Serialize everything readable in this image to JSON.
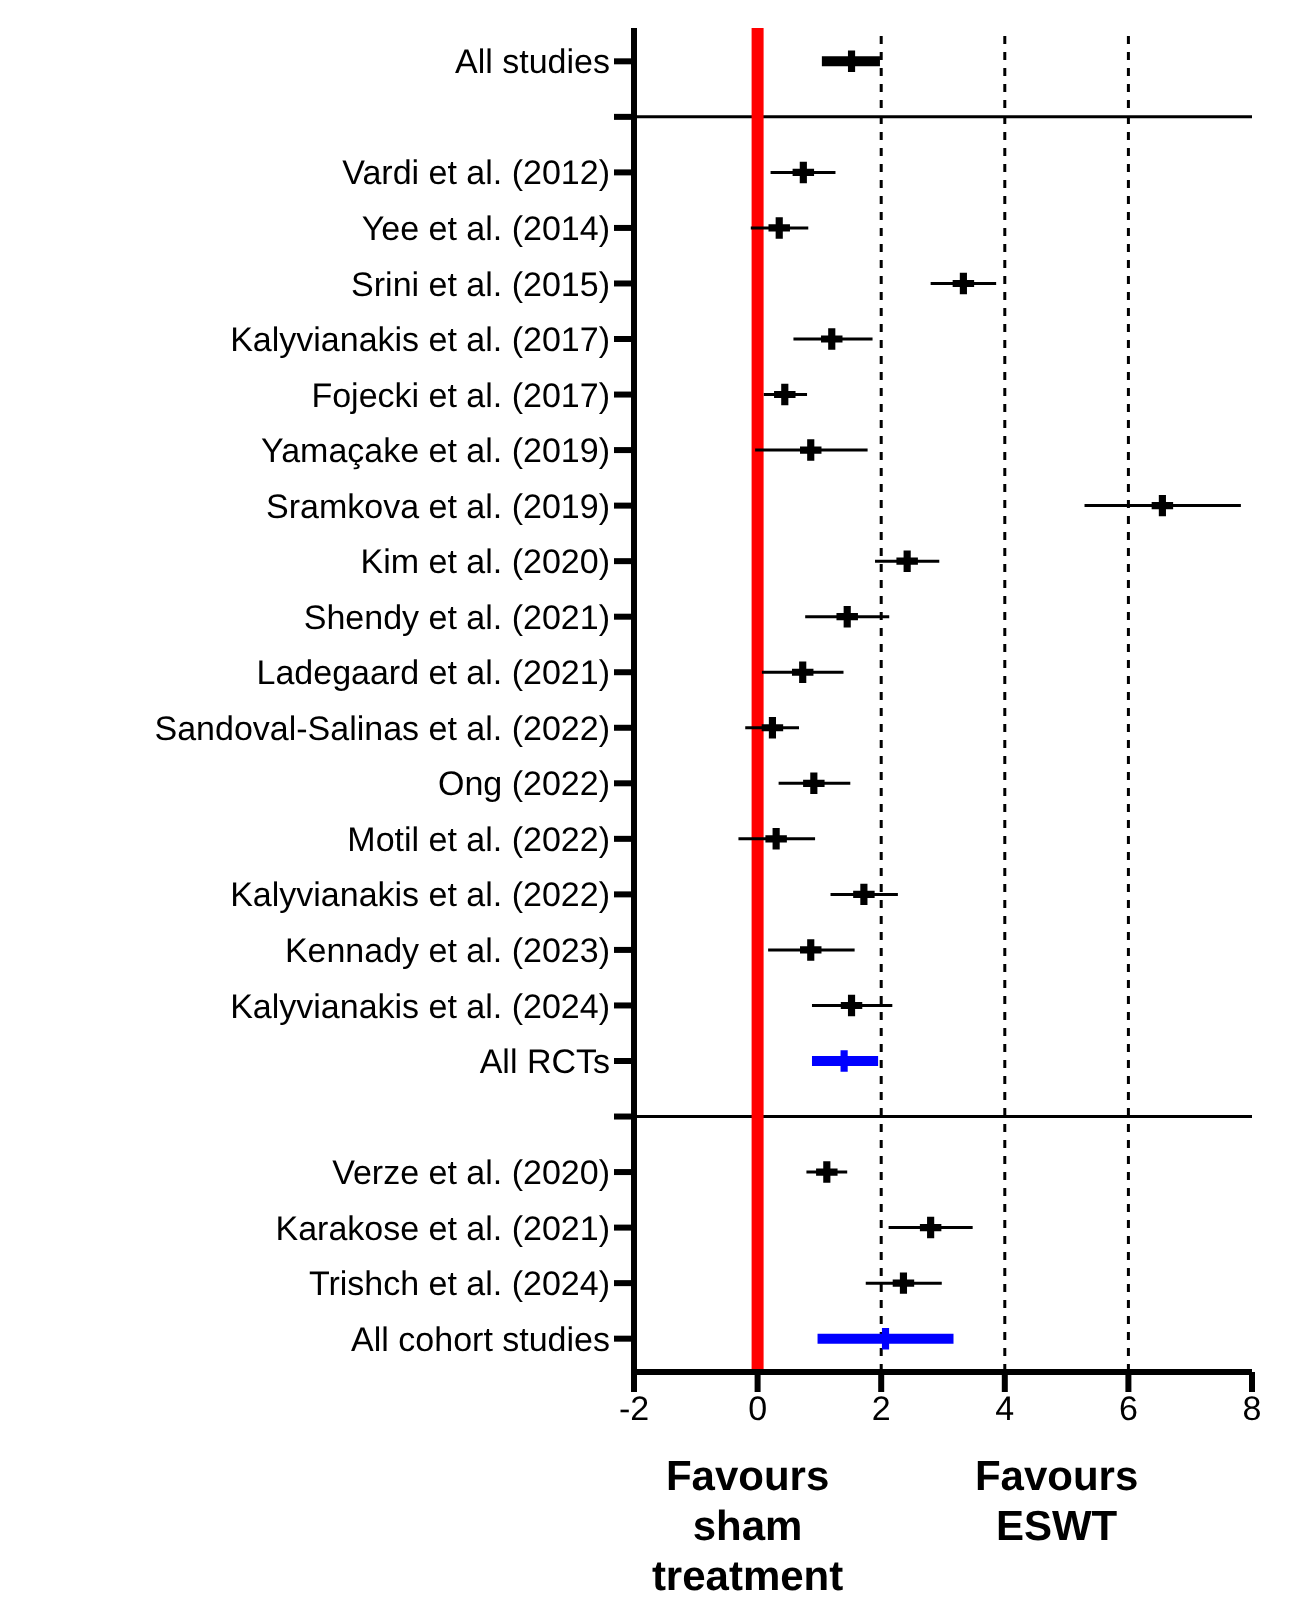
{
  "chart_data": {
    "type": "scatter",
    "orientation": "horizontal",
    "marker": "cross",
    "categories": [
      "All studies",
      null,
      "Vardi et al. (2012)",
      "Yee et al. (2014)",
      "Srini et al. (2015)",
      "Kalyvianakis et al. (2017)",
      "Fojecki et al. (2017)",
      "Yamaçake et al. (2019)",
      "Sramkova et al. (2019)",
      "Kim et al. (2020)",
      "Shendy et al. (2021)",
      "Ladegaard et al. (2021)",
      "Sandoval-Salinas et al. (2022)",
      "Ong (2022)",
      "Motil et al. (2022)",
      "Kalyvianakis et al. (2022)",
      "Kennady et al. (2023)",
      "Kalyvianakis et al. (2024)",
      "All RCTs",
      null,
      "Verze et al. (2020)",
      "Karakose et al. (2021)",
      "Trishch et al. (2024)",
      "All cohort studies"
    ],
    "series": [
      {
        "color": "#000000",
        "values": [
          1.52,
          null,
          null,
          null,
          null,
          null,
          null,
          null,
          null,
          null,
          null,
          null,
          null,
          null,
          null,
          null,
          null,
          null,
          null,
          null,
          null,
          null,
          null,
          null
        ],
        "errors": [
          [
            1.04,
            1.98
          ],
          null,
          null,
          null,
          null,
          null,
          null,
          null,
          null,
          null,
          null,
          null,
          null,
          null,
          null,
          null,
          null,
          null,
          null,
          null,
          null,
          null,
          null,
          null
        ]
      },
      {
        "color": "#000000",
        "values": [
          null,
          null,
          0.74,
          0.35,
          3.33,
          1.2,
          0.44,
          0.86,
          6.55,
          2.42,
          1.45,
          0.73,
          0.24,
          0.91,
          0.3,
          1.72,
          0.86,
          1.52,
          null,
          null,
          1.12,
          2.8,
          2.36,
          null
        ],
        "errors": [
          null,
          null,
          [
            0.21,
            1.26
          ],
          [
            -0.11,
            0.82
          ],
          [
            2.8,
            3.86
          ],
          [
            0.58,
            1.86
          ],
          [
            0.1,
            0.8
          ],
          [
            -0.04,
            1.78
          ],
          [
            5.29,
            7.82
          ],
          [
            1.9,
            2.94
          ],
          [
            0.77,
            2.13
          ],
          [
            0.07,
            1.39
          ],
          [
            -0.2,
            0.67
          ],
          [
            0.34,
            1.5
          ],
          [
            -0.31,
            0.93
          ],
          [
            1.18,
            2.27
          ],
          [
            0.17,
            1.57
          ],
          [
            0.88,
            2.18
          ],
          null,
          null,
          [
            0.79,
            1.45
          ],
          [
            2.12,
            3.48
          ],
          [
            1.75,
            2.98
          ],
          null
        ]
      },
      {
        "color": "#0000ff",
        "values": [
          null,
          null,
          null,
          null,
          null,
          null,
          null,
          null,
          null,
          null,
          null,
          null,
          null,
          null,
          null,
          null,
          null,
          null,
          1.4,
          null,
          null,
          null,
          null,
          2.07
        ],
        "errors": [
          null,
          null,
          null,
          null,
          null,
          null,
          null,
          null,
          null,
          null,
          null,
          null,
          null,
          null,
          null,
          null,
          null,
          null,
          [
            0.88,
            1.95
          ],
          null,
          null,
          null,
          null,
          [
            0.97,
            3.17
          ]
        ]
      }
    ],
    "xlim": [
      -2,
      8
    ],
    "xticks": [
      -2,
      0,
      2,
      4,
      6,
      8
    ],
    "ref_lines": [
      {
        "axis": "x",
        "value": 0,
        "color": "#ff0000",
        "line_style": "solid"
      },
      {
        "axis": "x",
        "value": 2,
        "color": "#000000",
        "line_style": "dashed"
      },
      {
        "axis": "x",
        "value": 4,
        "color": "#000000",
        "line_style": "dashed"
      },
      {
        "axis": "x",
        "value": 6,
        "color": "#000000",
        "line_style": "dashed"
      },
      {
        "axis": "y",
        "color": "#000000",
        "line_style": "solid"
      },
      {
        "axis": "y",
        "color": "#000000",
        "line_style": "solid"
      }
    ],
    "annotations": [
      "Favours sham treatment",
      "Favours ESWT"
    ]
  }
}
